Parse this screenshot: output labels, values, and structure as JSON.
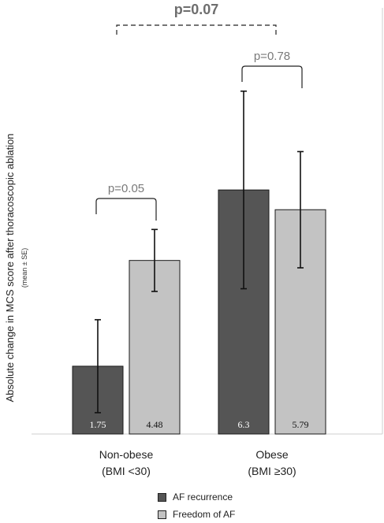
{
  "chart_data": {
    "type": "bar",
    "ylabel": "Absolute change in MCS score after thoracoscopic ablation",
    "ylabel_sub": "(mean ± SE)",
    "categories": [
      {
        "line1": "Non-obese",
        "line2": "(BMI <30)"
      },
      {
        "line1": "Obese",
        "line2": "(BMI ≥30)"
      }
    ],
    "series": [
      {
        "name": "AF recurrence",
        "color": "#555555",
        "label_color": "#ffffff",
        "values": [
          1.75,
          6.3
        ],
        "value_labels": [
          "1.75",
          "6.3"
        ],
        "se": [
          1.2,
          2.55
        ]
      },
      {
        "name": "Freedom of AF",
        "color": "#c3c3c3",
        "label_color": "#111111",
        "values": [
          4.48,
          5.79
        ],
        "value_labels": [
          "4.48",
          "5.79"
        ],
        "se": [
          0.8,
          1.5
        ]
      }
    ],
    "ylim": [
      0,
      11.0
    ],
    "comparisons": [
      {
        "label": "p=0.05",
        "category": 0
      },
      {
        "label": "p=0.78",
        "category": 1
      },
      {
        "label": "p=0.07",
        "between_categories": true
      }
    ]
  }
}
